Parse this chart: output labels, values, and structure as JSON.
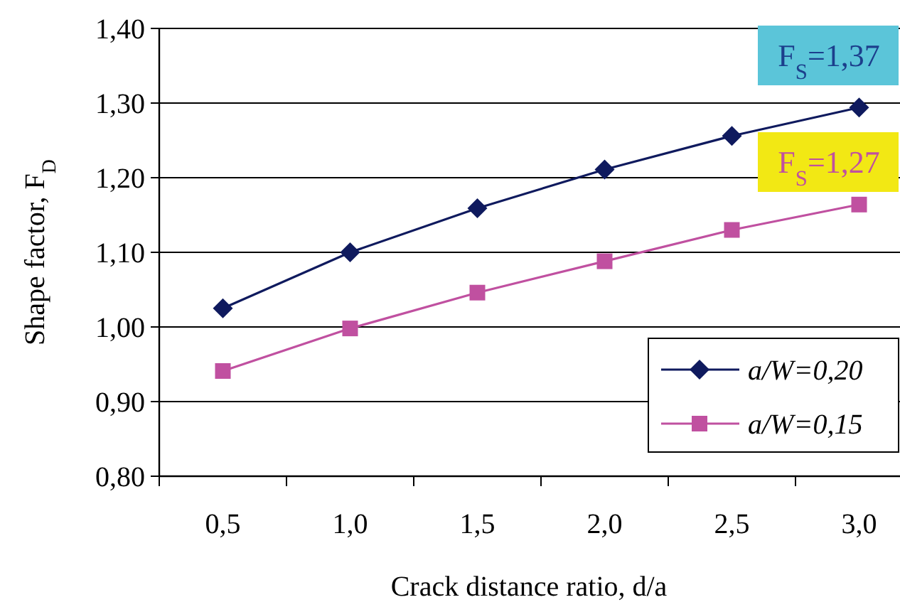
{
  "chart_data": {
    "type": "line",
    "xlabel": "Crack distance ratio, d/a",
    "ylabel": "Shape factor,  F$_{D}$",
    "categories": [
      "0,5",
      "1,0",
      "1,5",
      "2,0",
      "2,5",
      "3,0"
    ],
    "series": [
      {
        "name": "a/W=0,20",
        "color": "#0f1a5e",
        "marker": "diamond",
        "values": [
          1.025,
          1.1,
          1.159,
          1.211,
          1.256,
          1.294
        ]
      },
      {
        "name": "a/W=0,15",
        "color": "#c050a0",
        "marker": "square",
        "values": [
          0.941,
          0.998,
          1.046,
          1.088,
          1.13,
          1.164
        ]
      }
    ],
    "ylim": [
      0.8,
      1.4
    ],
    "yticks": [
      {
        "value": 0.8,
        "label": "0,80"
      },
      {
        "value": 0.9,
        "label": "0,90"
      },
      {
        "value": 1.0,
        "label": "1,00"
      },
      {
        "value": 1.1,
        "label": "1,10"
      },
      {
        "value": 1.2,
        "label": "1,20"
      },
      {
        "value": 1.3,
        "label": "1,30"
      },
      {
        "value": 1.4,
        "label": "1,40"
      }
    ],
    "grid": "y",
    "legend": "bottom right",
    "line_style": "solid",
    "annotations": [
      "F$_{S}$=1,37",
      "F$_{S}$=1,27"
    ]
  }
}
